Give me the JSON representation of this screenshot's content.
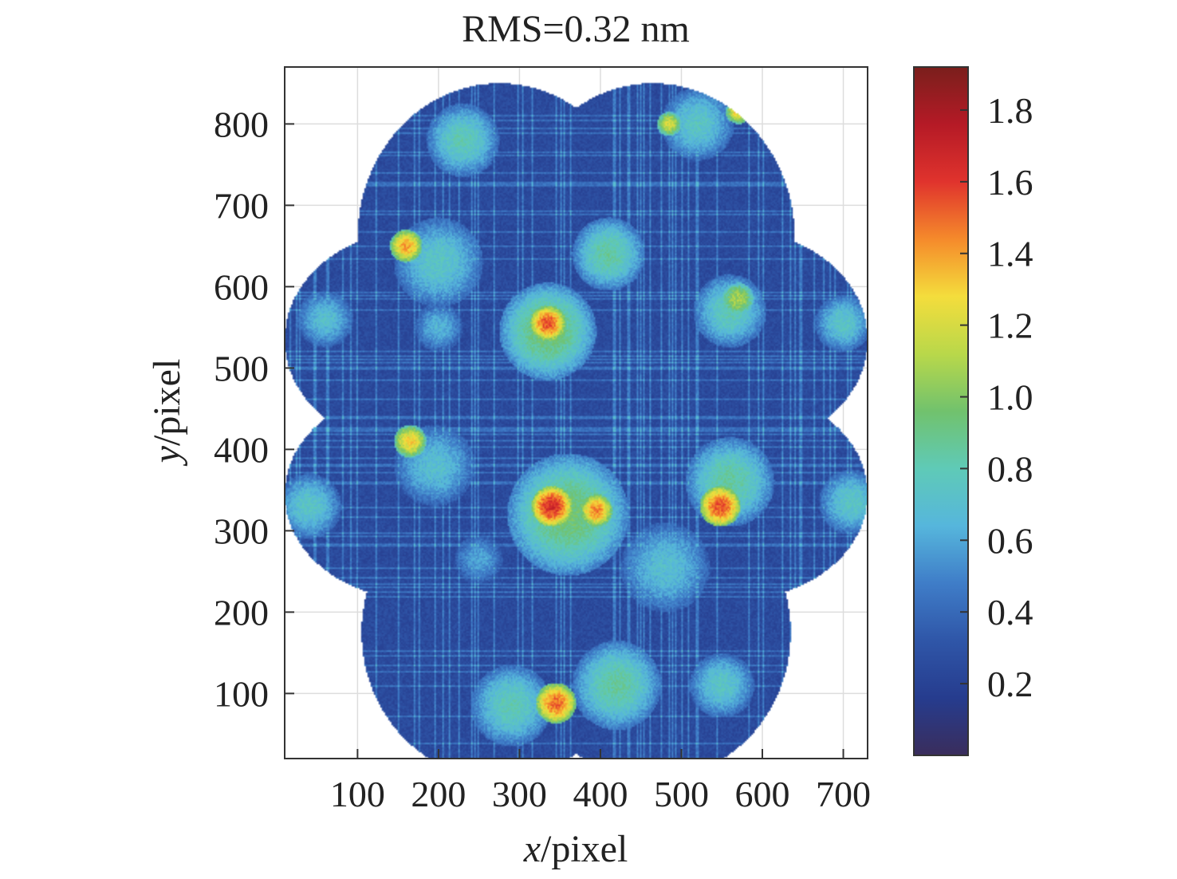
{
  "chart_data": {
    "type": "heatmap",
    "title": "RMS=0.32 nm",
    "xlabel_var": "x",
    "xlabel_unit": "/pixel",
    "ylabel_var": "y",
    "ylabel_unit": "/pixel",
    "xlim": [
      10,
      730
    ],
    "ylim": [
      20,
      870
    ],
    "x_ticks": [
      100,
      200,
      300,
      400,
      500,
      600,
      700
    ],
    "x_tick_labels": [
      "100",
      "200",
      "300",
      "400",
      "500",
      "600",
      "700"
    ],
    "y_ticks": [
      100,
      200,
      300,
      400,
      500,
      600,
      700,
      800
    ],
    "y_tick_labels": [
      "100",
      "200",
      "300",
      "400",
      "500",
      "600",
      "700",
      "800"
    ],
    "grid": true,
    "colorbar": {
      "range": [
        0.0,
        1.92
      ],
      "ticks": [
        0.2,
        0.4,
        0.6,
        0.8,
        1.0,
        1.2,
        1.4,
        1.6,
        1.8
      ],
      "tick_labels": [
        "0.2",
        "0.4",
        "0.6",
        "0.8",
        "1.0",
        "1.2",
        "1.4",
        "1.6",
        "1.8"
      ],
      "colormap": [
        "#3a2d5c",
        "#263c8e",
        "#2f56a8",
        "#3f7dc8",
        "#56b6dc",
        "#5fcab7",
        "#71c26d",
        "#b9d84a",
        "#f4dd3c",
        "#f58a2b",
        "#e0332d",
        "#b51a26",
        "#7a1f1c"
      ],
      "placement": "right"
    },
    "field": {
      "description_ok": false,
      "base_value": 0.25,
      "sub_apertures": [
        {
          "cx": 275,
          "cy": 660,
          "rx": 175,
          "ry": 190
        },
        {
          "cx": 465,
          "cy": 660,
          "rx": 175,
          "ry": 190
        },
        {
          "cx": 175,
          "cy": 535,
          "rx": 165,
          "ry": 135
        },
        {
          "cx": 565,
          "cy": 535,
          "rx": 165,
          "ry": 135
        },
        {
          "cx": 370,
          "cy": 470,
          "rx": 200,
          "ry": 200
        },
        {
          "cx": 175,
          "cy": 345,
          "rx": 165,
          "ry": 130
        },
        {
          "cx": 565,
          "cy": 345,
          "rx": 165,
          "ry": 130
        },
        {
          "cx": 275,
          "cy": 175,
          "rx": 170,
          "ry": 180
        },
        {
          "cx": 465,
          "cy": 175,
          "rx": 170,
          "ry": 180
        }
      ],
      "hotspots": [
        {
          "x": 340,
          "y": 330,
          "r": 25,
          "v": 1.65
        },
        {
          "x": 395,
          "y": 325,
          "r": 20,
          "v": 1.45
        },
        {
          "x": 335,
          "y": 555,
          "r": 22,
          "v": 1.55
        },
        {
          "x": 345,
          "y": 88,
          "r": 25,
          "v": 1.5
        },
        {
          "x": 548,
          "y": 330,
          "r": 25,
          "v": 1.55
        },
        {
          "x": 160,
          "y": 650,
          "r": 20,
          "v": 1.4
        },
        {
          "x": 165,
          "y": 410,
          "r": 20,
          "v": 1.3
        },
        {
          "x": 570,
          "y": 815,
          "r": 15,
          "v": 1.3
        },
        {
          "x": 485,
          "y": 800,
          "r": 15,
          "v": 1.2
        },
        {
          "x": 570,
          "y": 585,
          "r": 20,
          "v": 1.1
        }
      ],
      "warm_zones": [
        {
          "x": 335,
          "y": 545,
          "r": 60,
          "v": 0.95
        },
        {
          "x": 360,
          "y": 320,
          "r": 75,
          "v": 0.95
        },
        {
          "x": 410,
          "y": 640,
          "r": 45,
          "v": 0.85
        },
        {
          "x": 200,
          "y": 630,
          "r": 55,
          "v": 0.75
        },
        {
          "x": 560,
          "y": 570,
          "r": 45,
          "v": 0.8
        },
        {
          "x": 195,
          "y": 380,
          "r": 50,
          "v": 0.7
        },
        {
          "x": 560,
          "y": 360,
          "r": 55,
          "v": 0.85
        },
        {
          "x": 40,
          "y": 330,
          "r": 40,
          "v": 0.75
        },
        {
          "x": 710,
          "y": 335,
          "r": 40,
          "v": 0.75
        },
        {
          "x": 290,
          "y": 85,
          "r": 50,
          "v": 0.8
        },
        {
          "x": 420,
          "y": 110,
          "r": 55,
          "v": 0.85
        },
        {
          "x": 230,
          "y": 780,
          "r": 45,
          "v": 0.8
        },
        {
          "x": 520,
          "y": 800,
          "r": 45,
          "v": 0.75
        },
        {
          "x": 60,
          "y": 560,
          "r": 35,
          "v": 0.7
        },
        {
          "x": 700,
          "y": 555,
          "r": 35,
          "v": 0.75
        },
        {
          "x": 200,
          "y": 550,
          "r": 30,
          "v": 0.65
        },
        {
          "x": 550,
          "y": 110,
          "r": 40,
          "v": 0.75
        },
        {
          "x": 480,
          "y": 255,
          "r": 55,
          "v": 0.7
        },
        {
          "x": 250,
          "y": 265,
          "r": 30,
          "v": 0.6
        }
      ]
    }
  }
}
